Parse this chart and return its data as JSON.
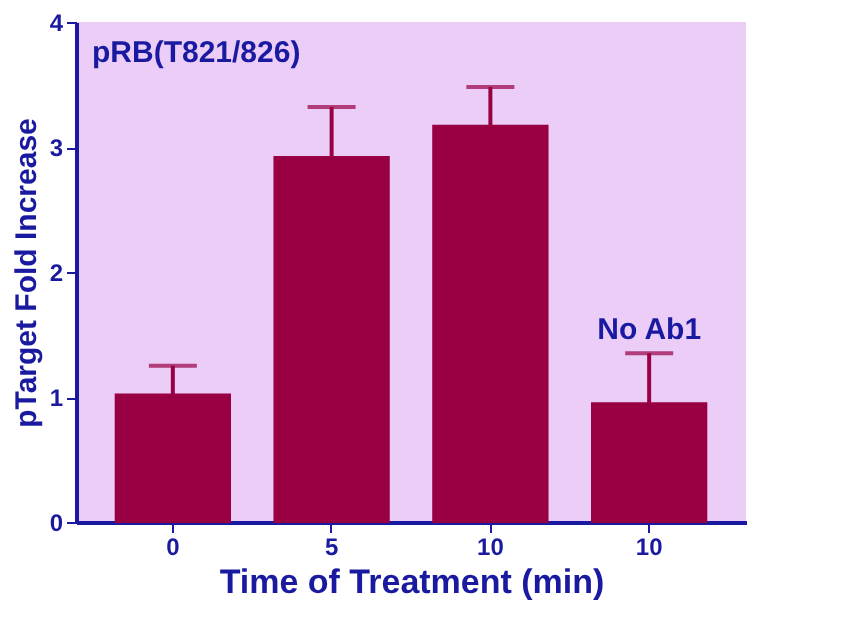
{
  "chart_data": {
    "type": "bar",
    "xlabel": "Time of Treatment (min)",
    "ylabel": "pTarget Fold Increase",
    "categories": [
      "0",
      "5",
      "10",
      "10"
    ],
    "values": [
      1.02,
      2.92,
      3.17,
      0.95
    ],
    "errors": [
      0.23,
      0.4,
      0.31,
      0.4
    ],
    "color": "#990044",
    "ylim": [
      0,
      4
    ],
    "yticks": [
      0,
      1,
      2,
      3,
      4
    ],
    "grid": false,
    "annotations": [
      "pRB(T821/826)",
      "No Ab1"
    ]
  }
}
